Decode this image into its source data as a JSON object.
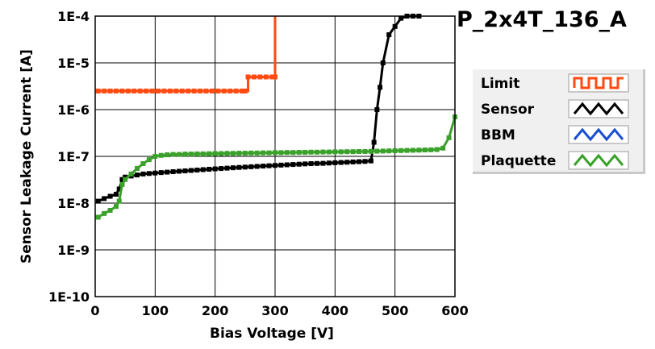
{
  "chart_data": {
    "type": "line",
    "title": "P_2x4T_136_A",
    "xlabel": "Bias Voltage [V]",
    "ylabel": "Sensor Leakage Current [A]",
    "xlim": [
      0,
      600
    ],
    "ylim": [
      1e-10,
      0.0001
    ],
    "y_scale": "log",
    "grid": true,
    "x_ticks": [
      "0",
      "100",
      "200",
      "300",
      "400",
      "500",
      "600"
    ],
    "y_ticks": [
      "1E-4",
      "1E-5",
      "1E-6",
      "1E-7",
      "1E-8",
      "1E-9",
      "1E-10"
    ],
    "legend_position": "right",
    "series": [
      {
        "name": "Limit",
        "color": "#ff4a12",
        "step": true,
        "x": [
          5,
          15,
          25,
          35,
          45,
          55,
          65,
          75,
          85,
          95,
          105,
          115,
          125,
          135,
          145,
          155,
          165,
          175,
          185,
          195,
          205,
          215,
          225,
          235,
          245,
          250,
          255,
          265,
          275,
          285,
          295,
          300
        ],
        "y": [
          2.5e-06,
          2.5e-06,
          2.5e-06,
          2.5e-06,
          2.5e-06,
          2.5e-06,
          2.5e-06,
          2.5e-06,
          2.5e-06,
          2.5e-06,
          2.5e-06,
          2.5e-06,
          2.5e-06,
          2.5e-06,
          2.5e-06,
          2.5e-06,
          2.5e-06,
          2.5e-06,
          2.5e-06,
          2.5e-06,
          2.5e-06,
          2.5e-06,
          2.5e-06,
          2.5e-06,
          2.5e-06,
          2.5e-06,
          5e-06,
          5e-06,
          5e-06,
          5e-06,
          5e-06,
          5e-06
        ],
        "end_value": 0.0001
      },
      {
        "name": "Sensor",
        "color": "#000000",
        "x": [
          5,
          15,
          25,
          35,
          40,
          45,
          50,
          60,
          70,
          80,
          90,
          100,
          110,
          120,
          130,
          140,
          150,
          160,
          170,
          180,
          190,
          200,
          210,
          220,
          230,
          240,
          250,
          260,
          270,
          280,
          290,
          300,
          310,
          320,
          330,
          340,
          350,
          360,
          370,
          380,
          390,
          400,
          410,
          420,
          430,
          440,
          450,
          460,
          465,
          470,
          475,
          480,
          490,
          500,
          510,
          520,
          530,
          540
        ],
        "y": [
          1.1e-08,
          1.25e-08,
          1.4e-08,
          1.55e-08,
          2e-08,
          3.2e-08,
          3.6e-08,
          3.8e-08,
          4e-08,
          4.2e-08,
          4.3e-08,
          4.4e-08,
          4.5e-08,
          4.6e-08,
          4.7e-08,
          4.8e-08,
          4.9e-08,
          5e-08,
          5.1e-08,
          5.2e-08,
          5.3e-08,
          5.4e-08,
          5.5e-08,
          5.6e-08,
          5.7e-08,
          5.8e-08,
          5.9e-08,
          6e-08,
          6.1e-08,
          6.2e-08,
          6.3e-08,
          6.4e-08,
          6.5e-08,
          6.6e-08,
          6.7e-08,
          6.8e-08,
          6.9e-08,
          7e-08,
          7.05e-08,
          7.1e-08,
          7.2e-08,
          7.3e-08,
          7.4e-08,
          7.5e-08,
          7.6e-08,
          7.7e-08,
          7.8e-08,
          8e-08,
          2e-07,
          1e-06,
          3e-06,
          1e-05,
          4e-05,
          6e-05,
          9e-05,
          0.0001,
          0.0001,
          0.0001
        ],
        "markers": true
      },
      {
        "name": "BBM",
        "color": "#1a4fd0",
        "x": [],
        "y": []
      },
      {
        "name": "Plaquette",
        "color": "#3aa12a",
        "x": [
          5,
          15,
          25,
          35,
          40,
          45,
          50,
          60,
          70,
          80,
          90,
          100,
          110,
          120,
          130,
          140,
          150,
          160,
          170,
          180,
          190,
          200,
          210,
          220,
          230,
          240,
          250,
          260,
          270,
          280,
          290,
          300,
          310,
          320,
          330,
          340,
          350,
          360,
          370,
          380,
          390,
          400,
          410,
          420,
          430,
          440,
          450,
          460,
          470,
          480,
          490,
          500,
          510,
          520,
          530,
          540,
          550,
          560,
          570,
          580,
          590,
          600
        ],
        "y": [
          5e-09,
          6e-09,
          7e-09,
          8.5e-09,
          1.1e-08,
          2.5e-08,
          3.2e-08,
          4.2e-08,
          5.5e-08,
          7e-08,
          8.5e-08,
          1e-07,
          1.05e-07,
          1.08e-07,
          1.1e-07,
          1.1e-07,
          1.12e-07,
          1.12e-07,
          1.13e-07,
          1.13e-07,
          1.14e-07,
          1.15e-07,
          1.15e-07,
          1.16e-07,
          1.16e-07,
          1.17e-07,
          1.17e-07,
          1.18e-07,
          1.18e-07,
          1.19e-07,
          1.19e-07,
          1.2e-07,
          1.2e-07,
          1.21e-07,
          1.21e-07,
          1.22e-07,
          1.22e-07,
          1.23e-07,
          1.23e-07,
          1.24e-07,
          1.24e-07,
          1.25e-07,
          1.25e-07,
          1.26e-07,
          1.26e-07,
          1.27e-07,
          1.27e-07,
          1.28e-07,
          1.29e-07,
          1.3e-07,
          1.31e-07,
          1.32e-07,
          1.33e-07,
          1.34e-07,
          1.35e-07,
          1.36e-07,
          1.37e-07,
          1.38e-07,
          1.4e-07,
          1.5e-07,
          2.5e-07,
          7e-07
        ],
        "markers": true
      }
    ]
  }
}
